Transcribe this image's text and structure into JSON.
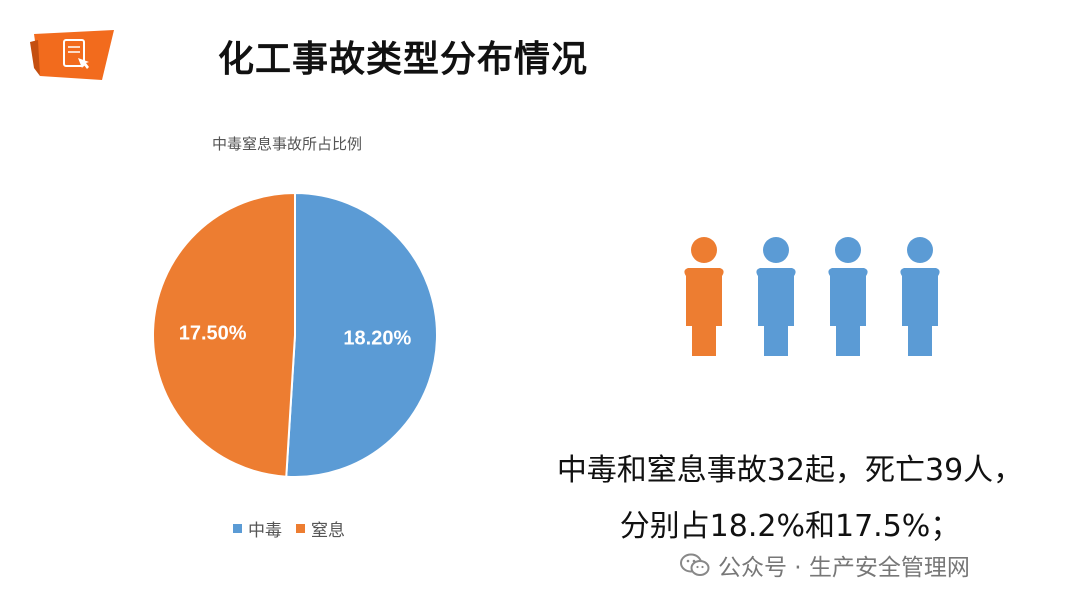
{
  "header": {
    "title": "化工事故类型分布情况",
    "icon": "document-touch-icon",
    "badge_color": "#f26b1d"
  },
  "chart_data": {
    "type": "pie",
    "title": "中毒窒息事故所占比例",
    "series": [
      {
        "name": "中毒",
        "value": 18.2,
        "label": "18.20%",
        "color": "#5b9bd5"
      },
      {
        "name": "窒息",
        "value": 17.5,
        "label": "17.50%",
        "color": "#ed7d31"
      }
    ],
    "legend_position": "bottom"
  },
  "people_icons": {
    "count": 4,
    "highlight_index": 0,
    "highlight_color": "#ed7d31",
    "default_color": "#5b9bd5"
  },
  "summary": {
    "line1": "中毒和窒息事故32起，死亡39人，",
    "line2": "分别占18.2%和17.5%；"
  },
  "watermark": {
    "icon": "wechat-icon",
    "text": "公众号 · 生产安全管理网"
  }
}
